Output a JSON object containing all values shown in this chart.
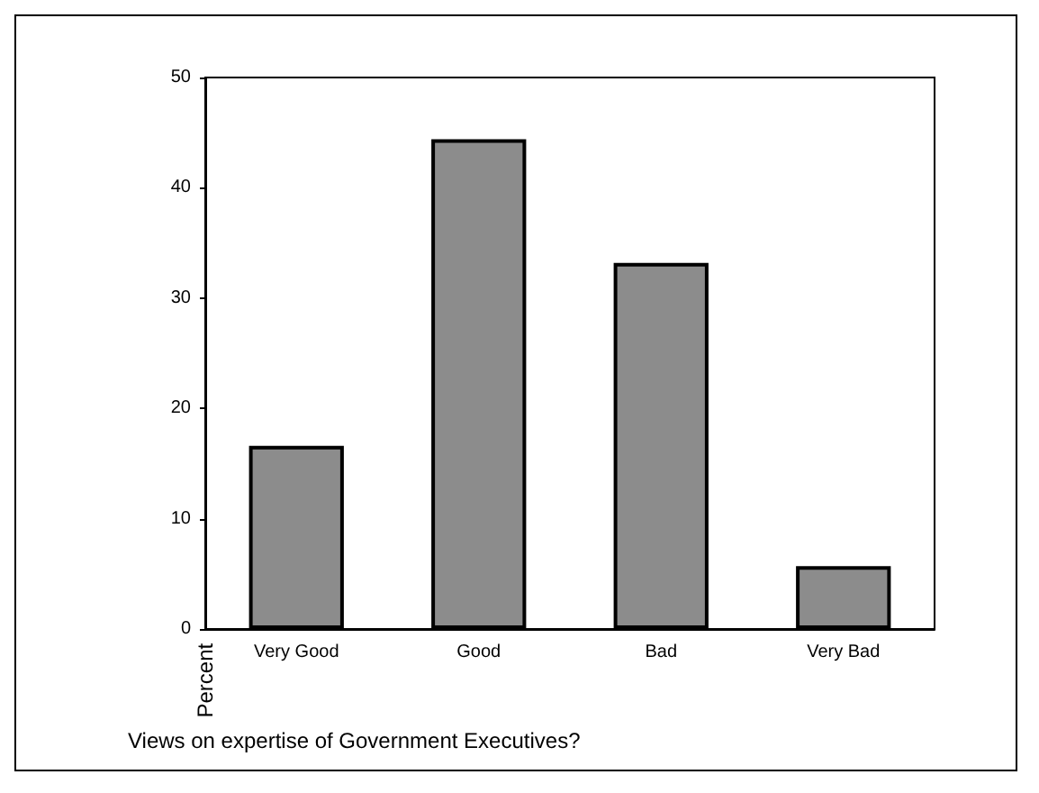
{
  "chart_data": {
    "type": "bar",
    "xlabel": "Views on expertise of Government Executives?",
    "ylabel": "Percent",
    "categories": [
      "Very Good",
      "Good",
      "Bad",
      "Very Bad"
    ],
    "values": [
      16.6,
      44.4,
      33.2,
      5.7
    ],
    "color": "#8c8c8c",
    "ylim": [
      0,
      50
    ],
    "yticks": [
      0,
      10,
      20,
      30,
      40,
      50
    ],
    "grid": false
  }
}
